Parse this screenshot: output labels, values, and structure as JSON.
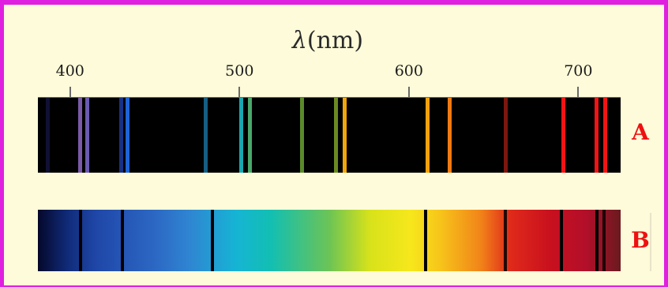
{
  "axis": {
    "title_symbol": "λ",
    "title_unit": "(nm)",
    "ticks": [
      {
        "value": 400,
        "label": "400"
      },
      {
        "value": 500,
        "label": "500"
      },
      {
        "value": 600,
        "label": "600"
      },
      {
        "value": 700,
        "label": "700"
      }
    ],
    "range_nm": [
      381,
      725
    ]
  },
  "spectra": {
    "A": {
      "label": "A",
      "kind": "emission",
      "lines": [
        {
          "nm": 387,
          "color": "#1a1a55",
          "alpha": 0.6
        },
        {
          "nm": 406,
          "color": "#7a5aa8",
          "alpha": 1
        },
        {
          "nm": 410,
          "color": "#6a5ab0",
          "alpha": 1
        },
        {
          "nm": 430,
          "color": "#1c3a9c",
          "alpha": 0.85
        },
        {
          "nm": 434,
          "color": "#1e64d8",
          "alpha": 1
        },
        {
          "nm": 480,
          "color": "#1a6f9a",
          "alpha": 0.85
        },
        {
          "nm": 501,
          "color": "#1aa8b0",
          "alpha": 1
        },
        {
          "nm": 506,
          "color": "#4aa86a",
          "alpha": 1
        },
        {
          "nm": 537,
          "color": "#5a8a2a",
          "alpha": 1
        },
        {
          "nm": 557,
          "color": "#6a8a22",
          "alpha": 1
        },
        {
          "nm": 562,
          "color": "#f2a60a",
          "alpha": 1
        },
        {
          "nm": 611,
          "color": "#f2a20c",
          "alpha": 1
        },
        {
          "nm": 624,
          "color": "#f07a12",
          "alpha": 1
        },
        {
          "nm": 657,
          "color": "#8a1a10",
          "alpha": 0.9
        },
        {
          "nm": 691,
          "color": "#f21414",
          "alpha": 1
        },
        {
          "nm": 711,
          "color": "#f21414",
          "alpha": 1
        },
        {
          "nm": 716,
          "color": "#f21414",
          "alpha": 1
        }
      ]
    },
    "B": {
      "label": "B",
      "kind": "absorption",
      "lines": [
        {
          "nm": 406,
          "color": "#000000",
          "alpha": 1
        },
        {
          "nm": 431,
          "color": "#000000",
          "alpha": 1
        },
        {
          "nm": 484,
          "color": "#000000",
          "alpha": 1
        },
        {
          "nm": 610,
          "color": "#000000",
          "alpha": 1
        },
        {
          "nm": 657,
          "color": "#000000",
          "alpha": 0.85
        },
        {
          "nm": 690,
          "color": "#000000",
          "alpha": 1
        },
        {
          "nm": 711,
          "color": "#000000",
          "alpha": 1
        },
        {
          "nm": 715,
          "color": "#000000",
          "alpha": 0.8
        }
      ]
    }
  }
}
